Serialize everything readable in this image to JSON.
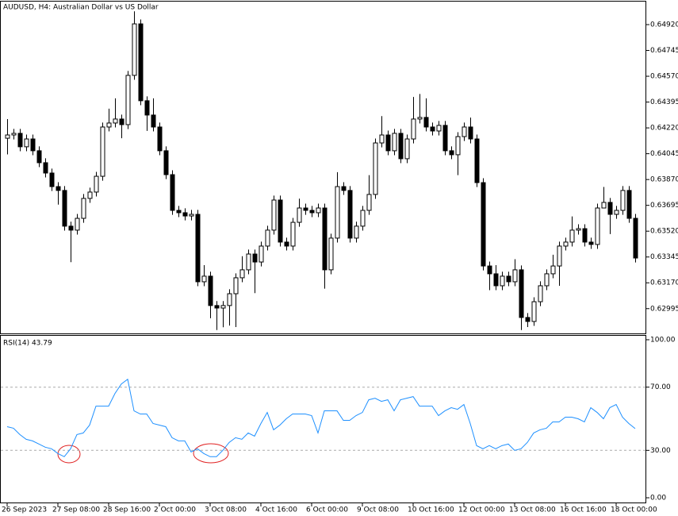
{
  "chart_data": [
    {
      "type": "candlestick",
      "title": "AUDUSD, H4:  Australian Dollar vs US Dollar",
      "up_color": "#ffffff",
      "down_color": "#000000",
      "edge_color": "#000000",
      "categories": [
        "26 Sep 2023",
        null,
        null,
        null,
        null,
        null,
        null,
        null,
        "27 Sep 08:00",
        null,
        null,
        null,
        null,
        null,
        null,
        null,
        "28 Sep 16:00",
        null,
        null,
        null,
        null,
        null,
        null,
        null,
        "2 Oct 00:00",
        null,
        null,
        null,
        null,
        null,
        null,
        null,
        "3 Oct 08:00",
        null,
        null,
        null,
        null,
        null,
        null,
        null,
        "4 Oct 16:00",
        null,
        null,
        null,
        null,
        null,
        null,
        null,
        "6 Oct 00:00",
        null,
        null,
        null,
        null,
        null,
        null,
        null,
        "9 Oct 08:00",
        null,
        null,
        null,
        null,
        null,
        null,
        null,
        "10 Oct 16:00",
        null,
        null,
        null,
        null,
        null,
        null,
        null,
        "12 Oct 00:00",
        null,
        null,
        null,
        null,
        null,
        null,
        null,
        "13 Oct 08:00",
        null,
        null,
        null,
        null,
        null,
        null,
        null,
        "16 Oct 16:00",
        null,
        null,
        null,
        null,
        null,
        null,
        null,
        "18 Oct 00:00",
        null,
        null,
        null
      ],
      "open": [
        0.6415,
        0.64172,
        0.64183,
        0.64092,
        0.64145,
        0.64065,
        0.63984,
        0.63914,
        0.63822,
        0.63796,
        0.63554,
        0.63527,
        0.63607,
        0.63742,
        0.63785,
        0.63892,
        0.64226,
        0.64253,
        0.6428,
        0.64242,
        0.64576,
        0.64925,
        0.64404,
        0.64307,
        0.64226,
        0.64065,
        0.63903,
        0.63661,
        0.63645,
        0.63623,
        0.63634,
        0.63177,
        0.63215,
        0.63016,
        0.62999,
        0.63016,
        0.63096,
        0.63204,
        0.63258,
        0.63365,
        0.63311,
        0.63419,
        0.63527,
        0.63731,
        0.63446,
        0.63419,
        0.6358,
        0.63677,
        0.63661,
        0.63645,
        0.63677,
        0.63258,
        0.63473,
        0.63822,
        0.63796,
        0.63473,
        0.63554,
        0.63661,
        0.63769,
        0.64118,
        0.64172,
        0.64065,
        0.64183,
        0.64011,
        0.64145,
        0.6428,
        0.64291,
        0.64226,
        0.64199,
        0.64237,
        0.64065,
        0.64038,
        0.64161,
        0.64226,
        0.64145,
        0.63849,
        0.63284,
        0.63231,
        0.6315,
        0.63215,
        0.63177,
        0.63258,
        0.62935,
        0.62908,
        0.63042,
        0.6315,
        0.63231,
        0.63284,
        0.63419,
        0.63446,
        0.63527,
        0.63537,
        0.63446,
        0.6343,
        0.63677,
        0.63715,
        0.63634,
        0.63661,
        0.63796,
        0.63607
      ],
      "high": [
        0.6428,
        0.64213,
        0.64213,
        0.64175,
        0.64175,
        0.64095,
        0.64014,
        0.63944,
        0.63852,
        0.63826,
        0.63584,
        0.63637,
        0.63772,
        0.63815,
        0.63922,
        0.64256,
        0.6435,
        0.6442,
        0.6431,
        0.64606,
        0.6501,
        0.64955,
        0.64434,
        0.6442,
        0.64256,
        0.64095,
        0.63933,
        0.63691,
        0.63675,
        0.63664,
        0.63664,
        0.6329,
        0.63245,
        0.63046,
        0.63046,
        0.63126,
        0.63234,
        0.6335,
        0.63395,
        0.63395,
        0.63449,
        0.63557,
        0.63761,
        0.63761,
        0.63476,
        0.6361,
        0.6374,
        0.63707,
        0.63691,
        0.63707,
        0.63707,
        0.63503,
        0.6392,
        0.63852,
        0.63826,
        0.63584,
        0.63691,
        0.639,
        0.64148,
        0.643,
        0.64202,
        0.64213,
        0.64213,
        0.64175,
        0.6443,
        0.6445,
        0.6442,
        0.64256,
        0.64267,
        0.64267,
        0.64095,
        0.64191,
        0.64256,
        0.6429,
        0.64175,
        0.63879,
        0.63314,
        0.6329,
        0.63245,
        0.63245,
        0.6333,
        0.63288,
        0.62965,
        0.63072,
        0.6318,
        0.63261,
        0.6336,
        0.63449,
        0.63476,
        0.6362,
        0.63567,
        0.63567,
        0.63476,
        0.63707,
        0.6382,
        0.63745,
        0.63691,
        0.63826,
        0.63826,
        0.63637
      ],
      "low": [
        0.6404,
        0.64142,
        0.64062,
        0.64062,
        0.64035,
        0.63954,
        0.63884,
        0.63792,
        0.637,
        0.63524,
        0.6331,
        0.63497,
        0.63577,
        0.63712,
        0.63755,
        0.63862,
        0.64196,
        0.64223,
        0.6415,
        0.64212,
        0.64546,
        0.64374,
        0.642,
        0.64196,
        0.64035,
        0.63873,
        0.63631,
        0.63615,
        0.63593,
        0.63593,
        0.63147,
        0.63147,
        0.6293,
        0.6285,
        0.62869,
        0.6288,
        0.6287,
        0.63174,
        0.63228,
        0.631,
        0.63281,
        0.63389,
        0.63497,
        0.63416,
        0.63389,
        0.63389,
        0.6355,
        0.63631,
        0.63615,
        0.63615,
        0.6313,
        0.63228,
        0.63443,
        0.63766,
        0.63443,
        0.63443,
        0.63524,
        0.63631,
        0.63739,
        0.64088,
        0.64035,
        0.64035,
        0.63981,
        0.63981,
        0.64115,
        0.6425,
        0.64196,
        0.64169,
        0.64169,
        0.64035,
        0.64008,
        0.639,
        0.64131,
        0.64115,
        0.63819,
        0.63254,
        0.6312,
        0.6312,
        0.6312,
        0.63147,
        0.63147,
        0.6285,
        0.6287,
        0.62878,
        0.63012,
        0.6312,
        0.63201,
        0.6315,
        0.63389,
        0.63416,
        0.63497,
        0.63416,
        0.634,
        0.634,
        0.63685,
        0.635,
        0.63604,
        0.63631,
        0.63577,
        0.63308
      ],
      "close": [
        0.64172,
        0.64183,
        0.64092,
        0.64145,
        0.64065,
        0.63984,
        0.63914,
        0.63822,
        0.63796,
        0.63554,
        0.63527,
        0.63607,
        0.63742,
        0.63785,
        0.63892,
        0.64226,
        0.64253,
        0.6428,
        0.64242,
        0.64576,
        0.64925,
        0.64404,
        0.64307,
        0.64226,
        0.64065,
        0.63903,
        0.63661,
        0.63645,
        0.63623,
        0.63634,
        0.63177,
        0.63215,
        0.63016,
        0.62999,
        0.63016,
        0.63096,
        0.63204,
        0.63258,
        0.63365,
        0.63311,
        0.63419,
        0.63527,
        0.63731,
        0.63446,
        0.63419,
        0.6358,
        0.63677,
        0.63661,
        0.63645,
        0.63677,
        0.63258,
        0.63473,
        0.63822,
        0.63796,
        0.63473,
        0.63554,
        0.63661,
        0.63769,
        0.64118,
        0.64172,
        0.64065,
        0.64183,
        0.64011,
        0.64145,
        0.6428,
        0.64291,
        0.64226,
        0.64199,
        0.64237,
        0.64065,
        0.64038,
        0.64161,
        0.64226,
        0.64145,
        0.63849,
        0.63284,
        0.63231,
        0.6315,
        0.63215,
        0.63177,
        0.63258,
        0.62935,
        0.62908,
        0.63042,
        0.6315,
        0.63231,
        0.63284,
        0.63419,
        0.63446,
        0.63527,
        0.63537,
        0.63446,
        0.6343,
        0.63677,
        0.63715,
        0.63634,
        0.63661,
        0.63796,
        0.63607,
        0.63338
      ],
      "ylim": [
        0.62827,
        0.65076
      ],
      "yticks": [
        {
          "value": 0.6492,
          "label": "0.64920"
        },
        {
          "value": 0.64745,
          "label": "0.64745"
        },
        {
          "value": 0.6457,
          "label": "0.64570"
        },
        {
          "value": 0.64395,
          "label": "0.64395"
        },
        {
          "value": 0.6422,
          "label": "0.64220"
        },
        {
          "value": 0.64045,
          "label": "0.64045"
        },
        {
          "value": 0.6387,
          "label": "0.63870"
        },
        {
          "value": 0.63695,
          "label": "0.63695"
        },
        {
          "value": 0.6352,
          "label": "0.63520"
        },
        {
          "value": 0.63345,
          "label": "0.63345"
        },
        {
          "value": 0.6317,
          "label": "0.63170"
        },
        {
          "value": 0.62995,
          "label": "0.62995"
        }
      ]
    },
    {
      "type": "line",
      "title": "RSI(14) 43.79",
      "color": "#1e90ff",
      "values": [
        45,
        44,
        40,
        37,
        36,
        34,
        32,
        31,
        28,
        26,
        31,
        40,
        41,
        46,
        58,
        58,
        58,
        66,
        72,
        75,
        55,
        53,
        53,
        47,
        46,
        45,
        38,
        36,
        36,
        29,
        31,
        28,
        26,
        26,
        30,
        35,
        38,
        37,
        41,
        39,
        47,
        54,
        43,
        46,
        50,
        53,
        53,
        53,
        52,
        41,
        55,
        55,
        55,
        49,
        49,
        52,
        54,
        62,
        63,
        61,
        62,
        55,
        62,
        63,
        64,
        58,
        58,
        58,
        52,
        55,
        57,
        56,
        59,
        47,
        33,
        31,
        33,
        31,
        33,
        34,
        30,
        31,
        35,
        41,
        43,
        44,
        48,
        48,
        51,
        51,
        50,
        48,
        57,
        54,
        50,
        57,
        59,
        51,
        47,
        43.79
      ],
      "ylim": [
        -3,
        103
      ],
      "yticks": [
        {
          "value": 100,
          "label": "100.00"
        },
        {
          "value": 70,
          "label": "70.00"
        },
        {
          "value": 30,
          "label": "30.00"
        },
        {
          "value": 0,
          "label": "0.00"
        }
      ]
    }
  ]
}
